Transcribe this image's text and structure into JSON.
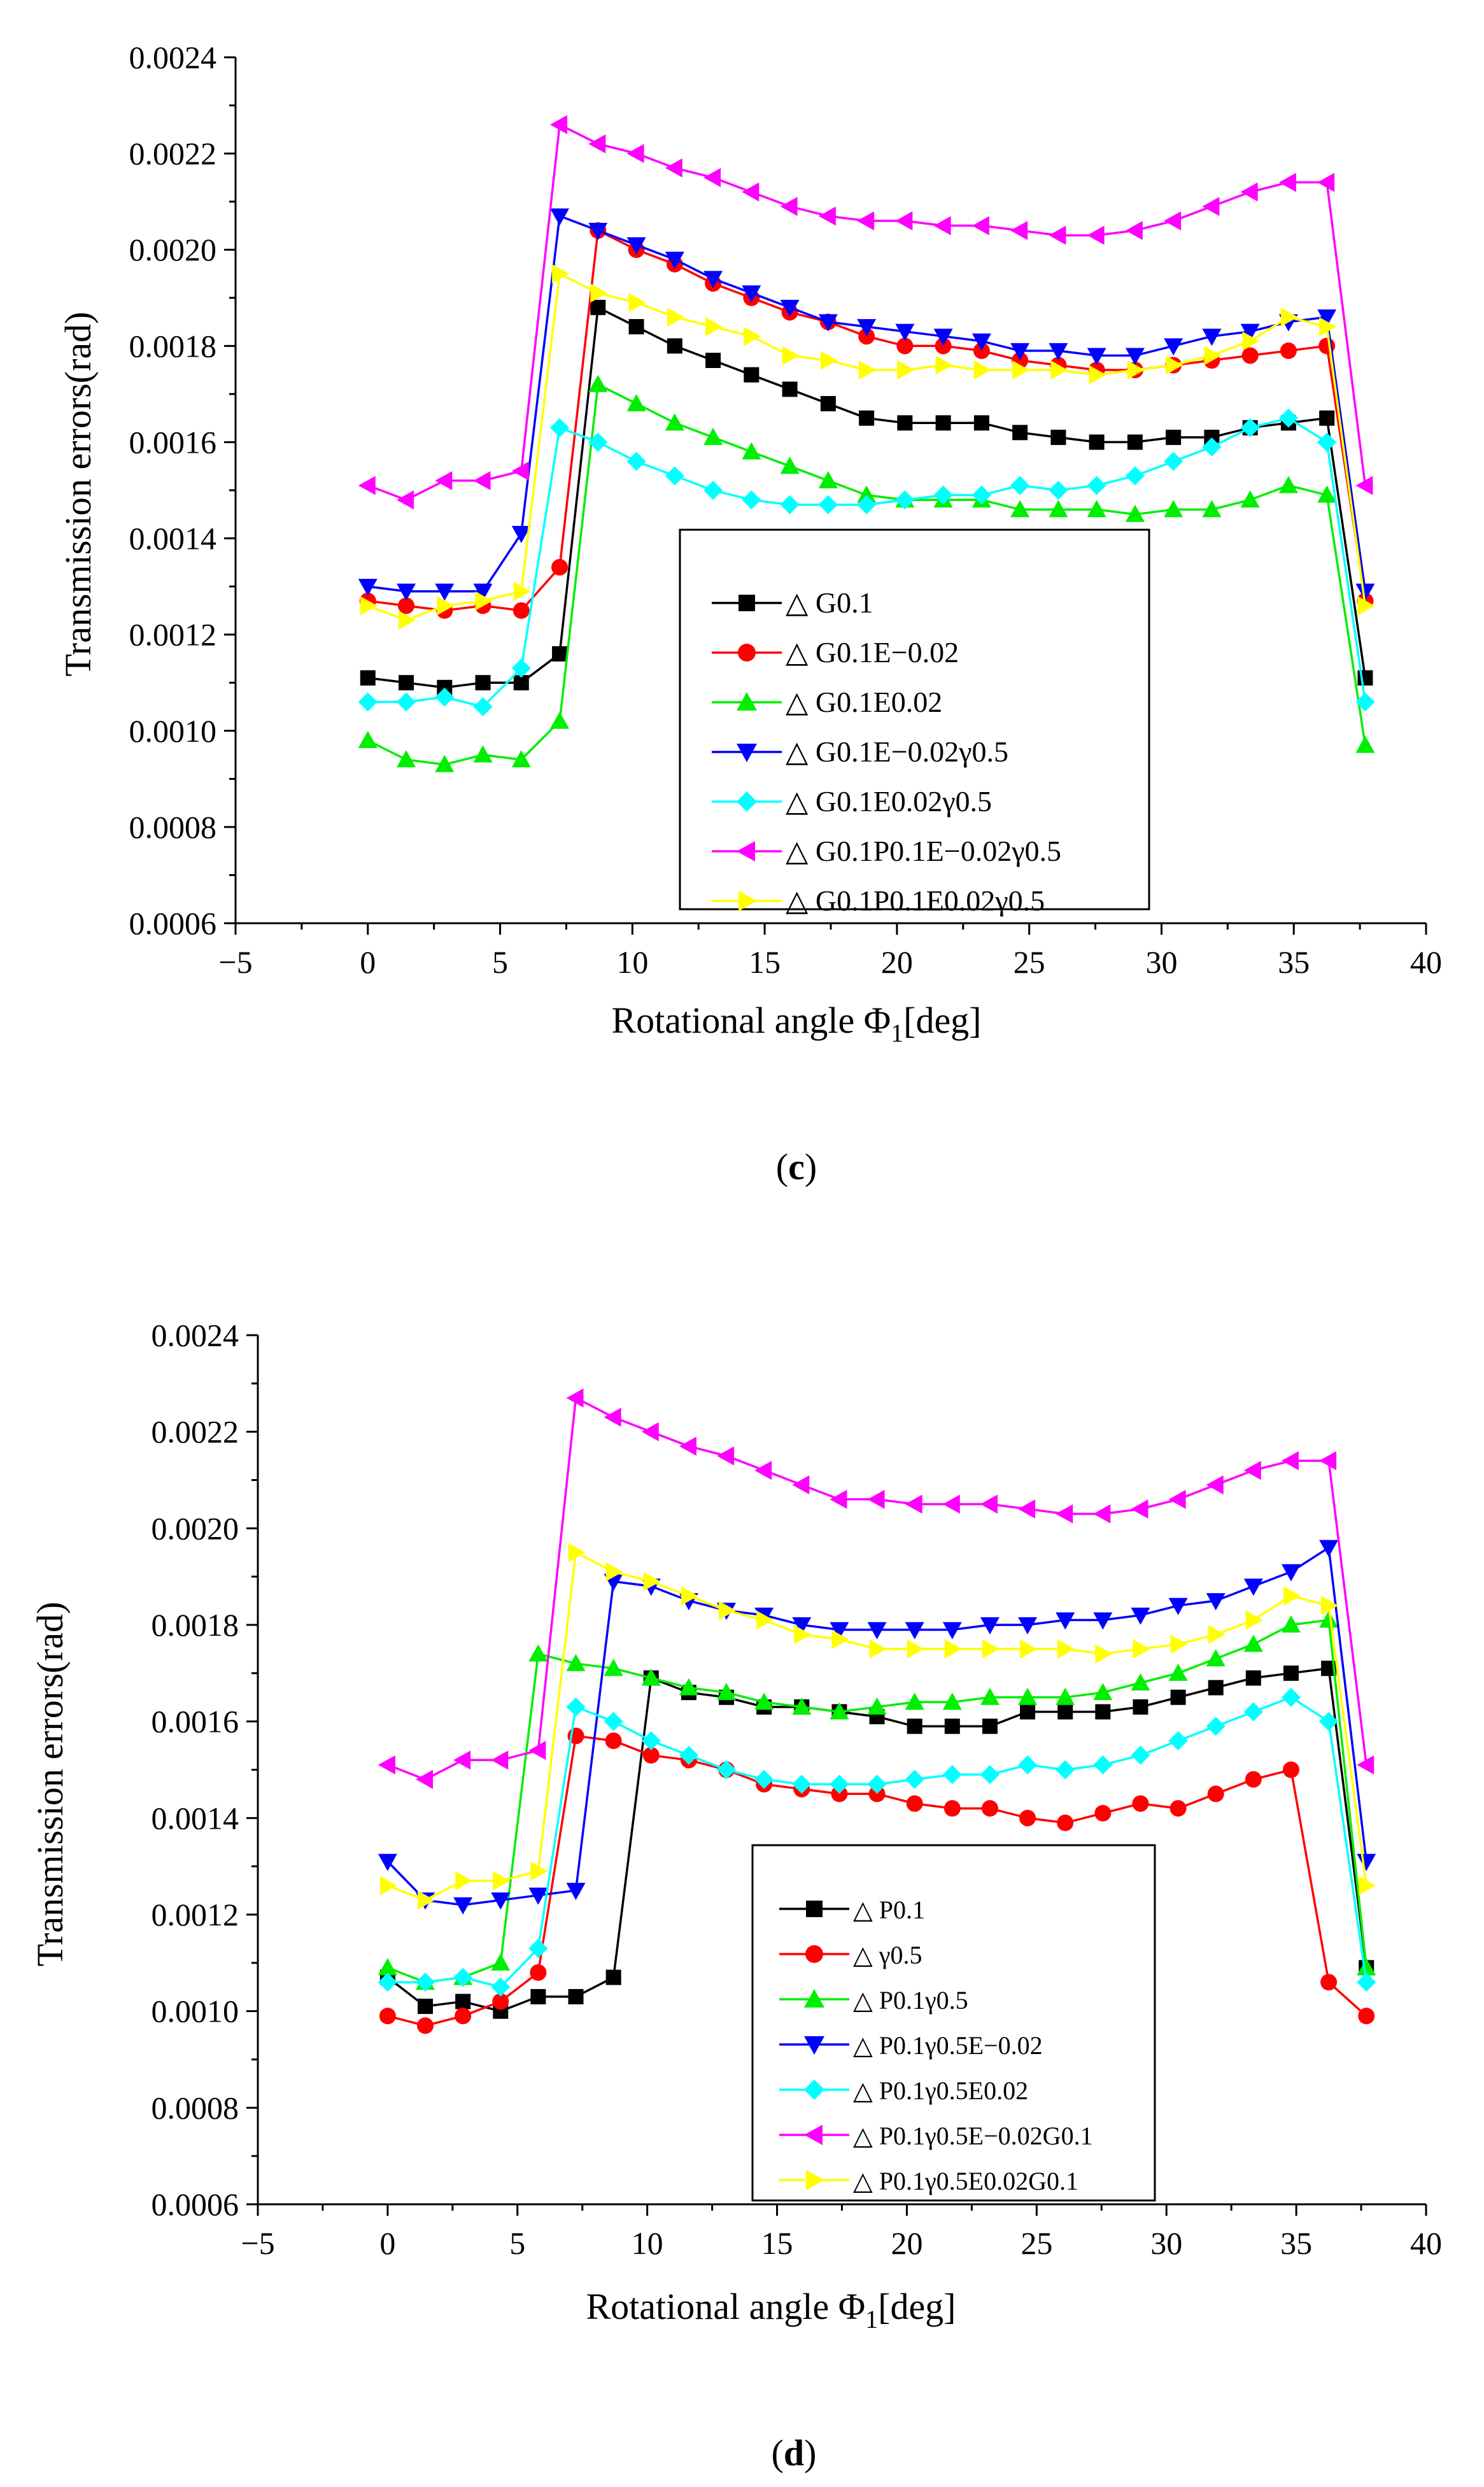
{
  "chart_data": [
    {
      "type": "line",
      "panel_label": "(c)",
      "panel_letter": "c",
      "xlabel": "Rotational angle Φ",
      "xlabel_sub": "1",
      "xlabel_unit": "[deg]",
      "ylabel": "Transmission errors(rad)",
      "xlim": [
        -5,
        40
      ],
      "ylim": [
        0.0006,
        0.0024
      ],
      "xticks": [
        -5,
        0,
        5,
        10,
        15,
        20,
        25,
        30,
        35,
        40
      ],
      "xtick_labels": [
        "−5",
        "0",
        "5",
        "10",
        "15",
        "20",
        "25",
        "30",
        "35",
        "40"
      ],
      "yticks": [
        0.0006,
        0.0008,
        0.001,
        0.0012,
        0.0014,
        0.0016,
        0.0018,
        0.002,
        0.0022,
        0.0024
      ],
      "ytick_labels": [
        "0.0006",
        "0.0008",
        "0.0010",
        "0.0012",
        "0.0014",
        "0.0016",
        "0.0018",
        "0.0020",
        "0.0022",
        "0.0024"
      ],
      "x": [
        0,
        1.45,
        2.9,
        4.35,
        5.8,
        7.25,
        8.7,
        10.15,
        11.6,
        13.05,
        14.5,
        15.95,
        17.4,
        18.85,
        20.3,
        21.75,
        23.2,
        24.65,
        26.1,
        27.55,
        29.0,
        30.45,
        31.9,
        33.35,
        34.8,
        36.25,
        37.7
      ],
      "legend_location": "center",
      "series": [
        {
          "name": "△ G0.1",
          "color": "#000000",
          "marker": "square",
          "values": [
            0.00111,
            0.0011,
            0.00109,
            0.0011,
            0.0011,
            0.00116,
            0.00188,
            0.00184,
            0.0018,
            0.00177,
            0.00174,
            0.00171,
            0.00168,
            0.00165,
            0.00164,
            0.00164,
            0.00164,
            0.00162,
            0.00161,
            0.0016,
            0.0016,
            0.00161,
            0.00161,
            0.00163,
            0.00164,
            0.00165,
            0.00111
          ]
        },
        {
          "name": "△ G0.1E−0.02",
          "color": "#ff0000",
          "marker": "circle",
          "values": [
            0.00127,
            0.00126,
            0.00125,
            0.00126,
            0.00125,
            0.00134,
            0.00204,
            0.002,
            0.00197,
            0.00193,
            0.0019,
            0.00187,
            0.00185,
            0.00182,
            0.0018,
            0.0018,
            0.00179,
            0.00177,
            0.00176,
            0.00175,
            0.00175,
            0.00176,
            0.00177,
            0.00178,
            0.00179,
            0.0018,
            0.00127
          ]
        },
        {
          "name": "△ G0.1E0.02",
          "color": "#00ee00",
          "marker": "triangle-up",
          "values": [
            0.00098,
            0.00094,
            0.00093,
            0.00095,
            0.00094,
            0.00102,
            0.00172,
            0.00168,
            0.00164,
            0.00161,
            0.00158,
            0.00155,
            0.00152,
            0.00149,
            0.00148,
            0.00148,
            0.00148,
            0.00146,
            0.00146,
            0.00146,
            0.00145,
            0.00146,
            0.00146,
            0.00148,
            0.00151,
            0.00149,
            0.00097
          ]
        },
        {
          "name": "△ G0.1E−0.02γ0.5",
          "color": "#0000ff",
          "marker": "triangle-down",
          "values": [
            0.0013,
            0.00129,
            0.00129,
            0.00129,
            0.00141,
            0.00207,
            0.00204,
            0.00201,
            0.00198,
            0.00194,
            0.00191,
            0.00188,
            0.00185,
            0.00184,
            0.00183,
            0.00182,
            0.00181,
            0.00179,
            0.00179,
            0.00178,
            0.00178,
            0.0018,
            0.00182,
            0.00183,
            0.00185,
            0.00186,
            0.00129
          ]
        },
        {
          "name": "△ G0.1E0.02γ0.5",
          "color": "#00ffff",
          "marker": "diamond",
          "values": [
            0.00106,
            0.00106,
            0.00107,
            0.00105,
            0.00113,
            0.00163,
            0.0016,
            0.00156,
            0.00153,
            0.0015,
            0.00148,
            0.00147,
            0.00147,
            0.00147,
            0.00148,
            0.00149,
            0.00149,
            0.00151,
            0.0015,
            0.00151,
            0.00153,
            0.00156,
            0.00159,
            0.00163,
            0.00165,
            0.0016,
            0.00106
          ]
        },
        {
          "name": "△ G0.1P0.1E−0.02γ0.5",
          "color": "#ff00ff",
          "marker": "triangle-left",
          "values": [
            0.00151,
            0.00148,
            0.00152,
            0.00152,
            0.00154,
            0.00226,
            0.00222,
            0.0022,
            0.00217,
            0.00215,
            0.00212,
            0.00209,
            0.00207,
            0.00206,
            0.00206,
            0.00205,
            0.00205,
            0.00204,
            0.00203,
            0.00203,
            0.00204,
            0.00206,
            0.00209,
            0.00212,
            0.00214,
            0.00214,
            0.00151
          ]
        },
        {
          "name": "△ G0.1P0.1E0.02γ0.5",
          "color": "#ffff00",
          "marker": "triangle-right",
          "values": [
            0.00126,
            0.00123,
            0.00126,
            0.00127,
            0.00129,
            0.00195,
            0.00191,
            0.00189,
            0.00186,
            0.00184,
            0.00182,
            0.00178,
            0.00177,
            0.00175,
            0.00175,
            0.00176,
            0.00175,
            0.00175,
            0.00175,
            0.00174,
            0.00175,
            0.00176,
            0.00178,
            0.00181,
            0.00186,
            0.00184,
            0.00126
          ]
        }
      ]
    },
    {
      "type": "line",
      "panel_label": "(d)",
      "panel_letter": "d",
      "xlabel": "Rotational angle Φ",
      "xlabel_sub": "1",
      "xlabel_unit": "[deg]",
      "ylabel": "Transmission errors(rad)",
      "xlim": [
        -5,
        40
      ],
      "ylim": [
        0.0006,
        0.0024
      ],
      "xticks": [
        -5,
        0,
        5,
        10,
        15,
        20,
        25,
        30,
        35,
        40
      ],
      "xtick_labels": [
        "−5",
        "0",
        "5",
        "10",
        "15",
        "20",
        "25",
        "30",
        "35",
        "40"
      ],
      "yticks": [
        0.0006,
        0.0008,
        0.001,
        0.0012,
        0.0014,
        0.0016,
        0.0018,
        0.002,
        0.0022,
        0.0024
      ],
      "ytick_labels": [
        "0.0006",
        "0.0008",
        "0.0010",
        "0.0012",
        "0.0014",
        "0.0016",
        "0.0018",
        "0.0020",
        "0.0022",
        "0.0024"
      ],
      "x": [
        0,
        1.45,
        2.9,
        4.35,
        5.8,
        7.25,
        8.7,
        10.15,
        11.6,
        13.05,
        14.5,
        15.95,
        17.4,
        18.85,
        20.3,
        21.75,
        23.2,
        24.65,
        26.1,
        27.55,
        29.0,
        30.45,
        31.9,
        33.35,
        34.8,
        36.25,
        37.7
      ],
      "legend_location": "lower-center",
      "series": [
        {
          "name": "△ P0.1",
          "color": "#000000",
          "marker": "square",
          "values": [
            0.00107,
            0.00101,
            0.00102,
            0.001,
            0.00103,
            0.00103,
            0.00107,
            0.00169,
            0.00166,
            0.00165,
            0.00163,
            0.00163,
            0.00162,
            0.00161,
            0.00159,
            0.00159,
            0.00159,
            0.00162,
            0.00162,
            0.00162,
            0.00163,
            0.00165,
            0.00167,
            0.00169,
            0.0017,
            0.00171,
            0.00109
          ]
        },
        {
          "name": "△ γ0.5",
          "color": "#ff0000",
          "marker": "circle",
          "values": [
            0.00099,
            0.00097,
            0.00099,
            0.00102,
            0.00108,
            0.00157,
            0.00156,
            0.00153,
            0.00152,
            0.0015,
            0.00147,
            0.00146,
            0.00145,
            0.00145,
            0.00143,
            0.00142,
            0.00142,
            0.0014,
            0.00139,
            0.00141,
            0.00143,
            0.00142,
            0.00145,
            0.00148,
            0.0015,
            0.00106,
            0.00099
          ]
        },
        {
          "name": "△ P0.1γ0.5",
          "color": "#00ee00",
          "marker": "triangle-up",
          "values": [
            0.00109,
            0.00106,
            0.00107,
            0.0011,
            0.00174,
            0.00172,
            0.00171,
            0.00169,
            0.00167,
            0.00166,
            0.00164,
            0.00163,
            0.00162,
            0.00163,
            0.00164,
            0.00164,
            0.00165,
            0.00165,
            0.00165,
            0.00166,
            0.00168,
            0.0017,
            0.00173,
            0.00176,
            0.0018,
            0.00181,
            0.00109
          ]
        },
        {
          "name": "△ P0.1γ0.5E−0.02",
          "color": "#0000ff",
          "marker": "triangle-down",
          "values": [
            0.00131,
            0.00123,
            0.00122,
            0.00123,
            0.00124,
            0.00125,
            0.00189,
            0.00188,
            0.00185,
            0.00183,
            0.00182,
            0.0018,
            0.00179,
            0.00179,
            0.00179,
            0.00179,
            0.0018,
            0.0018,
            0.00181,
            0.00181,
            0.00182,
            0.00184,
            0.00185,
            0.00188,
            0.00191,
            0.00196,
            0.00131
          ]
        },
        {
          "name": "△ P0.1γ0.5E0.02",
          "color": "#00ffff",
          "marker": "diamond",
          "values": [
            0.00106,
            0.00106,
            0.00107,
            0.00105,
            0.00113,
            0.00163,
            0.0016,
            0.00156,
            0.00153,
            0.0015,
            0.00148,
            0.00147,
            0.00147,
            0.00147,
            0.00148,
            0.00149,
            0.00149,
            0.00151,
            0.0015,
            0.00151,
            0.00153,
            0.00156,
            0.00159,
            0.00162,
            0.00165,
            0.0016,
            0.00106
          ]
        },
        {
          "name": "△ P0.1γ0.5E−0.02G0.1",
          "color": "#ff00ff",
          "marker": "triangle-left",
          "values": [
            0.00151,
            0.00148,
            0.00152,
            0.00152,
            0.00154,
            0.00227,
            0.00223,
            0.0022,
            0.00217,
            0.00215,
            0.00212,
            0.00209,
            0.00206,
            0.00206,
            0.00205,
            0.00205,
            0.00205,
            0.00204,
            0.00203,
            0.00203,
            0.00204,
            0.00206,
            0.00209,
            0.00212,
            0.00214,
            0.00214,
            0.00151
          ]
        },
        {
          "name": "△ P0.1γ0.5E0.02G0.1",
          "color": "#ffff00",
          "marker": "triangle-right",
          "values": [
            0.00126,
            0.00123,
            0.00127,
            0.00127,
            0.00129,
            0.00195,
            0.00191,
            0.00189,
            0.00186,
            0.00183,
            0.00181,
            0.00178,
            0.00177,
            0.00175,
            0.00175,
            0.00175,
            0.00175,
            0.00175,
            0.00175,
            0.00174,
            0.00175,
            0.00176,
            0.00178,
            0.00181,
            0.00186,
            0.00184,
            0.00126
          ]
        }
      ]
    }
  ]
}
